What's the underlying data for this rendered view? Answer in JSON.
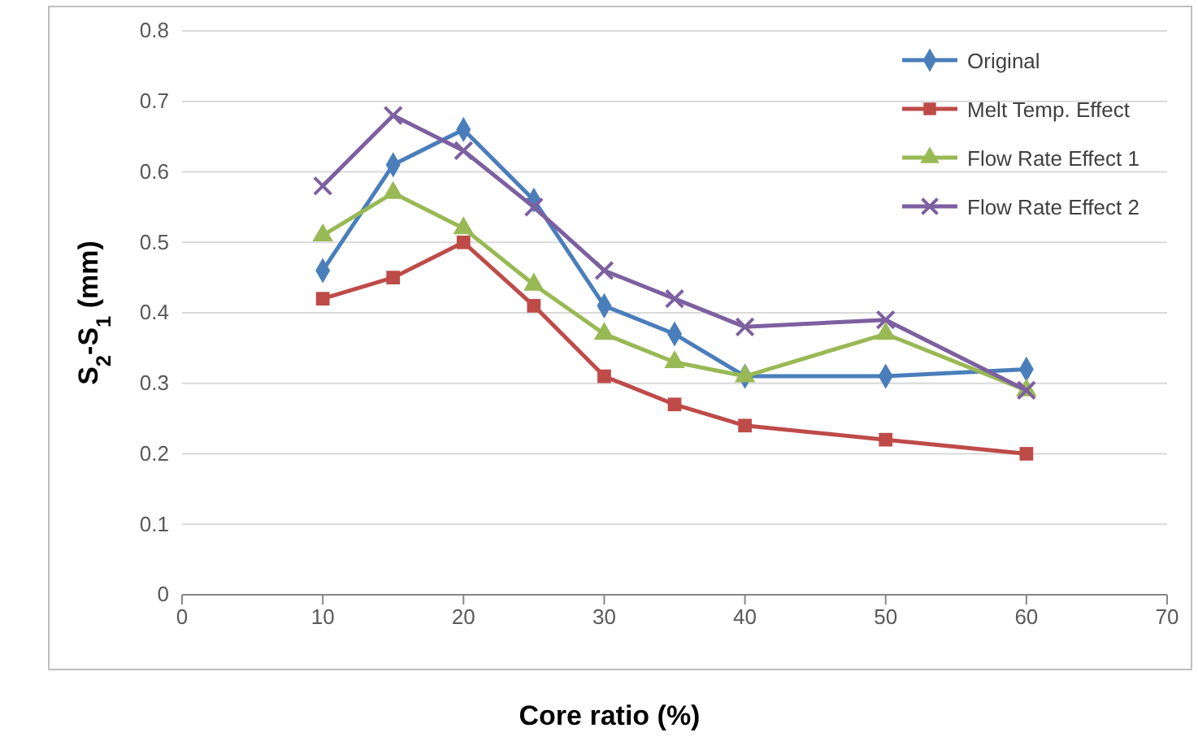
{
  "chart_data": {
    "type": "line",
    "xlabel": "Core ratio (%)",
    "ylabel": "S$_{2}$-S$_{1}$ (mm)",
    "x": [
      10,
      15,
      20,
      25,
      30,
      35,
      40,
      50,
      60
    ],
    "xlim": [
      0,
      70
    ],
    "xticks": [
      0,
      10,
      20,
      30,
      40,
      50,
      60,
      70
    ],
    "ylim": [
      0,
      0.8
    ],
    "yticks": [
      0,
      0.1,
      0.2,
      0.3,
      0.4,
      0.5,
      0.6,
      0.7,
      0.8
    ],
    "grid": "y",
    "legend": "top right",
    "line_style": "solid",
    "series": [
      {
        "name": "Original",
        "color": "#4a7ebb",
        "marker": "diamond",
        "values": [
          0.46,
          0.61,
          0.66,
          0.56,
          0.41,
          0.37,
          0.31,
          0.31,
          0.32
        ]
      },
      {
        "name": "Melt Temp. Effect",
        "color": "#be4b48",
        "marker": "square",
        "values": [
          0.42,
          0.45,
          0.5,
          0.41,
          0.31,
          0.27,
          0.24,
          0.22,
          0.2
        ]
      },
      {
        "name": "Flow Rate Effect 1",
        "color": "#98b954",
        "marker": "triangle",
        "values": [
          0.51,
          0.57,
          0.52,
          0.44,
          0.37,
          0.33,
          0.31,
          0.37,
          0.29
        ]
      },
      {
        "name": "Flow Rate Effect 2",
        "color": "#7d60a0",
        "marker": "cross",
        "values": [
          0.58,
          0.68,
          0.63,
          0.55,
          0.46,
          0.42,
          0.38,
          0.39,
          0.29
        ]
      }
    ]
  }
}
